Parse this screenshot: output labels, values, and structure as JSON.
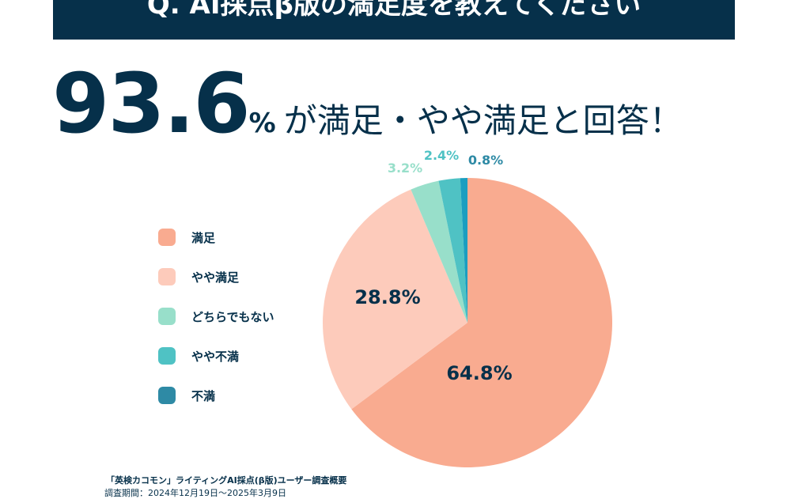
{
  "title": "Q. AI採点β版の満足度を教えてください",
  "headline": {
    "value": "93.6",
    "unit": "%",
    "text": "が満足・やや満足と回答！"
  },
  "chart_data": {
    "type": "pie",
    "title": "Q. AI採点β版の満足度を教えてください",
    "categories": [
      "満足",
      "やや満足",
      "どちらでもない",
      "やや不満",
      "不満"
    ],
    "values": [
      64.8,
      28.8,
      3.2,
      2.4,
      0.8
    ],
    "labels": [
      "64.8%",
      "28.8%",
      "3.2%",
      "2.4%",
      "0.8%"
    ],
    "colors": [
      "#f9ab90",
      "#fdcbbb",
      "#98dfca",
      "#4fc2c4",
      "#1a9ec0"
    ],
    "legend_colors": [
      "#f9ab90",
      "#fdcbbb",
      "#98dfca",
      "#4fc2c4",
      "#2e8aa5"
    ],
    "label_colors": [
      "#06304a",
      "#06304a",
      "#98dfca",
      "#4fc2c4",
      "#2e8aa5"
    ],
    "start": "12 o'clock",
    "direction": "clockwise",
    "legend_position": "left"
  },
  "footer": {
    "survey": "「英検カコモン」ライティングAI採点(β版)ユーザー調査概要",
    "period": "調査期間：2024年12月19日～2025年3月9日"
  }
}
